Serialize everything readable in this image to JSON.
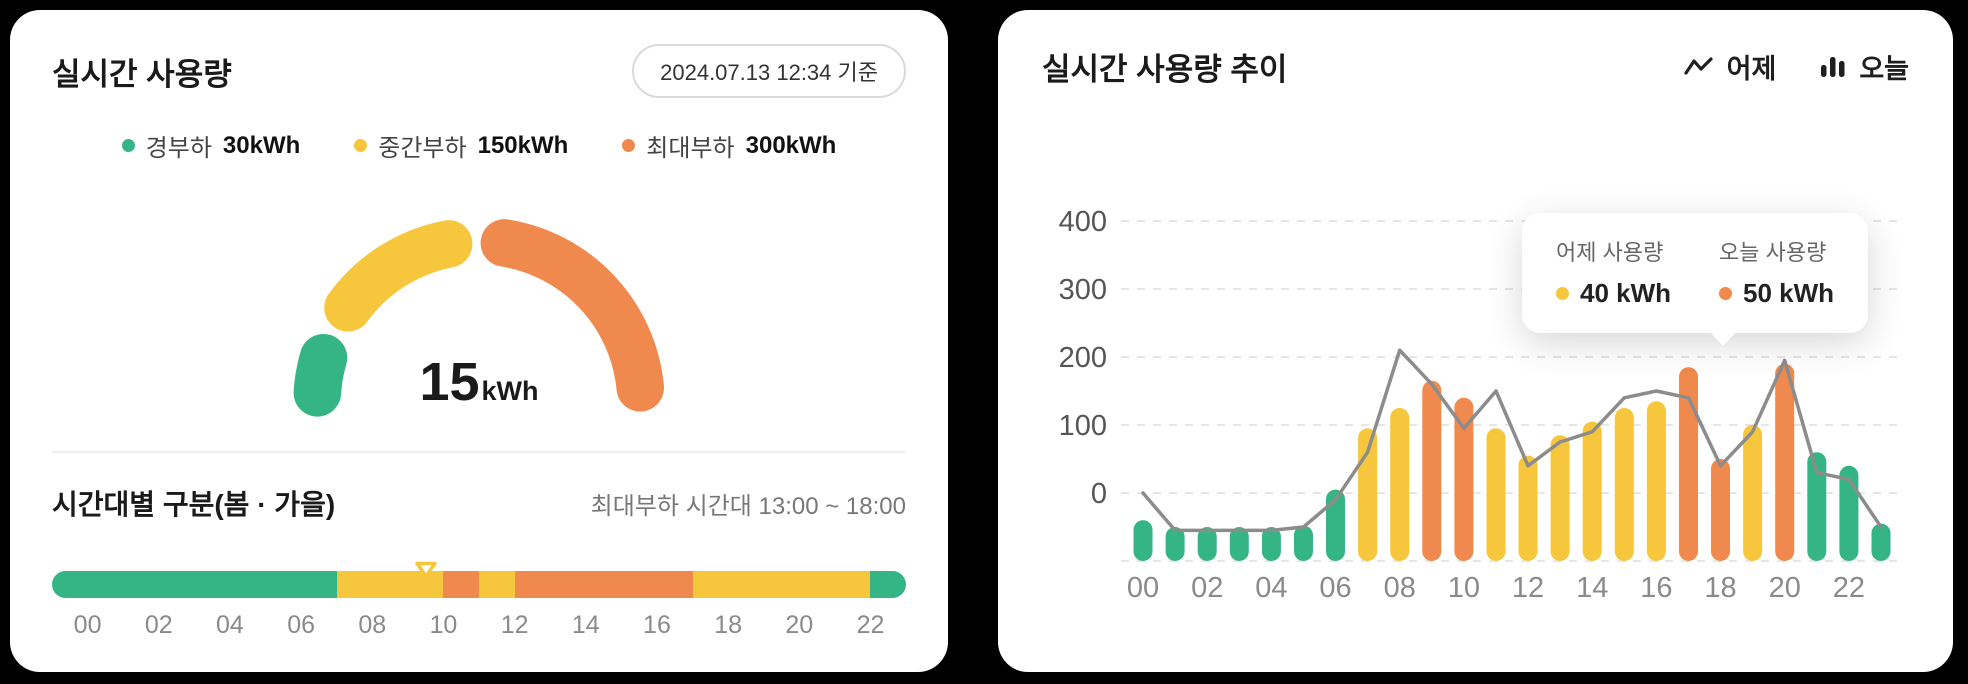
{
  "palette": {
    "green": "#35B586",
    "yellow": "#F6C73C",
    "orange": "#F0894D",
    "line_gray": "#8C8C8C",
    "grid": "#E6E6E6",
    "axis_text": "#555555",
    "muted_text": "#8A8A8A",
    "text": "#1A1A1A"
  },
  "left_card": {
    "title": "실시간 사용량",
    "timestamp_badge": "2024.07.13 12:34 기준",
    "legend": [
      {
        "label": "경부하",
        "value": "30kWh",
        "color": "green"
      },
      {
        "label": "중간부하",
        "value": "150kWh",
        "color": "yellow"
      },
      {
        "label": "최대부하",
        "value": "300kWh",
        "color": "orange"
      }
    ],
    "gauge": {
      "value": "15",
      "unit": "kWh",
      "max_kwh": 300,
      "segments": [
        {
          "name": "경부하",
          "color": "green",
          "from_kwh": 0,
          "to_kwh": 30
        },
        {
          "name": "중간부하",
          "color": "yellow",
          "from_kwh": 30,
          "to_kwh": 150
        },
        {
          "name": "최대부하",
          "color": "orange",
          "from_kwh": 150,
          "to_kwh": 300
        }
      ]
    },
    "timeband": {
      "section_title": "시간대별 구분(봄 · 가을)",
      "peak_note": "최대부하 시간대 13:00 ~ 18:00",
      "marker_hour": 10.5,
      "segments": [
        {
          "color": "green",
          "start": 0,
          "end": 8
        },
        {
          "color": "yellow",
          "start": 8,
          "end": 11
        },
        {
          "color": "orange",
          "start": 11,
          "end": 12
        },
        {
          "color": "yellow",
          "start": 12,
          "end": 13
        },
        {
          "color": "orange",
          "start": 13,
          "end": 18
        },
        {
          "color": "yellow",
          "start": 18,
          "end": 23
        },
        {
          "color": "green",
          "start": 23,
          "end": 24
        }
      ],
      "hour_labels": [
        "00",
        "02",
        "04",
        "06",
        "08",
        "10",
        "12",
        "14",
        "16",
        "18",
        "20",
        "22"
      ]
    }
  },
  "right_card": {
    "title": "실시간 사용량 추이",
    "legend": [
      {
        "label": "어제",
        "icon": "line-icon"
      },
      {
        "label": "오늘",
        "icon": "bars-icon"
      }
    ],
    "tooltip": {
      "items": [
        {
          "label": "어제 사용량",
          "color": "yellow",
          "value": "40 kWh"
        },
        {
          "label": "오늘 사용량",
          "color": "orange",
          "value": "50 kWh"
        }
      ],
      "anchor_hour": 18
    },
    "chart_data": {
      "type": "bar+line",
      "title": "실시간 사용량 추이",
      "unit": "kWh",
      "hours": [
        0,
        1,
        2,
        3,
        4,
        5,
        6,
        7,
        8,
        9,
        10,
        11,
        12,
        13,
        14,
        15,
        16,
        17,
        18,
        19,
        20,
        21,
        22,
        23
      ],
      "series": [
        {
          "name": "어제",
          "type": "line",
          "values": [
            0,
            -55,
            -55,
            -55,
            -55,
            -50,
            -10,
            60,
            210,
            160,
            95,
            150,
            40,
            75,
            90,
            140,
            150,
            140,
            40,
            90,
            195,
            30,
            20,
            -50
          ]
        },
        {
          "name": "오늘",
          "type": "bar",
          "values": [
            -40,
            -50,
            -50,
            -50,
            -50,
            -48,
            5,
            95,
            125,
            165,
            140,
            95,
            55,
            85,
            105,
            125,
            135,
            185,
            50,
            100,
            190,
            60,
            40,
            -45
          ],
          "colors": [
            "green",
            "green",
            "green",
            "green",
            "green",
            "green",
            "green",
            "yellow",
            "yellow",
            "orange",
            "orange",
            "yellow",
            "yellow",
            "yellow",
            "yellow",
            "yellow",
            "yellow",
            "orange",
            "orange",
            "yellow",
            "orange",
            "green",
            "green",
            "green"
          ]
        }
      ],
      "y_ticks": [
        400,
        300,
        200,
        100,
        0
      ],
      "ylim": [
        -100,
        430
      ],
      "x_tick_labels": [
        "00",
        "02",
        "04",
        "06",
        "08",
        "10",
        "12",
        "14",
        "16",
        "18",
        "20",
        "22"
      ],
      "grid": "dashed-horizontal",
      "legend_position": "top-right"
    }
  }
}
